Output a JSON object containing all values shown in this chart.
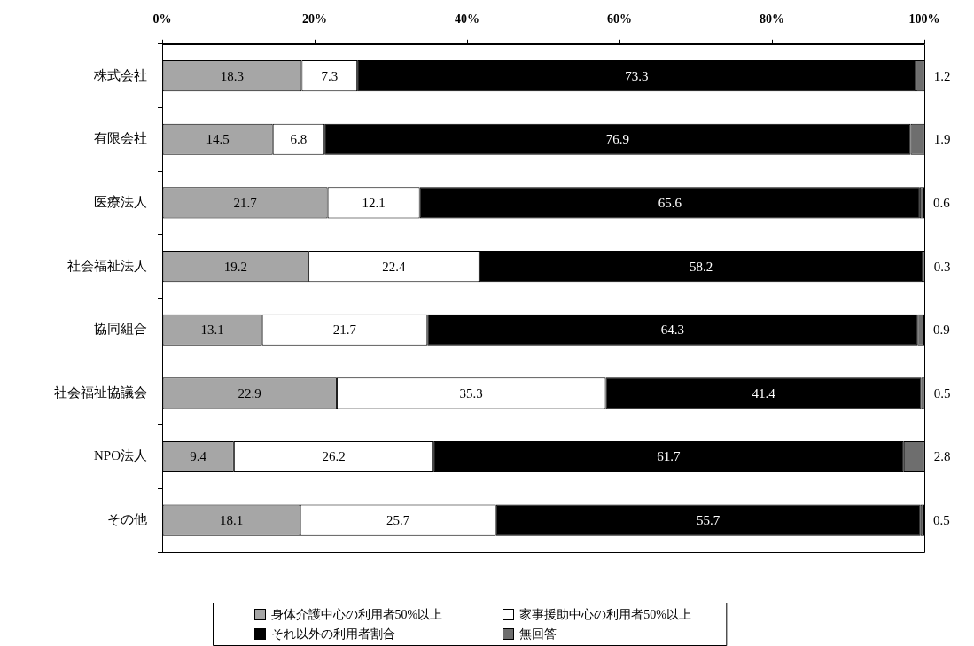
{
  "chart_data": {
    "type": "bar",
    "orientation": "horizontal",
    "stacked": true,
    "categories": [
      "株式会社",
      "有限会社",
      "医療法人",
      "社会福祉法人",
      "協同組合",
      "社会福祉協議会",
      "NPO法人",
      "その他"
    ],
    "series": [
      {
        "name": "身体介護中心の利用者50%以上",
        "color": "#a6a6a6",
        "values": [
          18.3,
          14.5,
          21.7,
          19.2,
          13.1,
          22.9,
          9.4,
          18.1
        ]
      },
      {
        "name": "家事援助中心の利用者50%以上",
        "color": "#ffffff",
        "values": [
          7.3,
          6.8,
          12.1,
          22.4,
          21.7,
          35.3,
          26.2,
          25.7
        ]
      },
      {
        "name": "それ以外の利用者割合",
        "color": "#000000",
        "values": [
          73.3,
          76.9,
          65.6,
          58.2,
          64.3,
          41.4,
          61.7,
          55.7
        ]
      },
      {
        "name": "無回答",
        "color": "#6e6e6e",
        "values": [
          1.2,
          1.9,
          0.6,
          0.3,
          0.9,
          0.5,
          2.8,
          0.5
        ]
      }
    ],
    "xlim": [
      0,
      100
    ],
    "xticks": [
      {
        "value": 0,
        "label": "0%"
      },
      {
        "value": 20,
        "label": "20%"
      },
      {
        "value": 40,
        "label": "40%"
      },
      {
        "value": 60,
        "label": "60%"
      },
      {
        "value": 80,
        "label": "80%"
      },
      {
        "value": 100,
        "label": "100%"
      }
    ],
    "data_labels": true,
    "legend": "bottom"
  }
}
